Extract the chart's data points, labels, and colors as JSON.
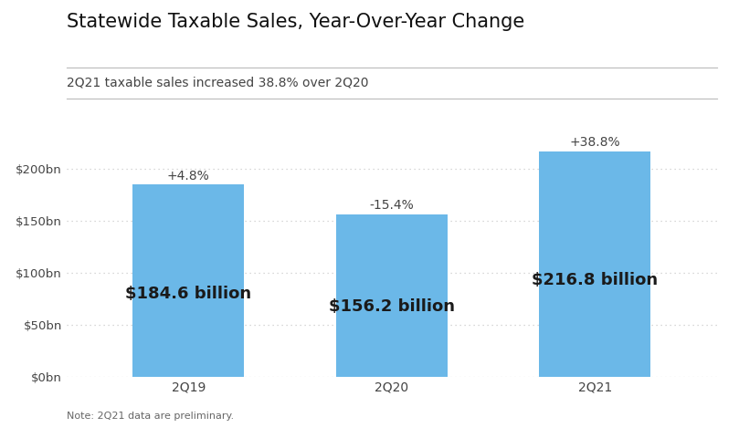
{
  "title": "Statewide Taxable Sales, Year-Over-Year Change",
  "subtitle": "2Q21 taxable sales increased 38.8% over 2Q20",
  "note": "Note: 2Q21 data are preliminary.",
  "categories": [
    "2Q19",
    "2Q20",
    "2Q21"
  ],
  "values": [
    184.6,
    156.2,
    216.8
  ],
  "bar_color": "#6bb8e8",
  "pct_labels": [
    "+4.8%",
    "-15.4%",
    "+38.8%"
  ],
  "value_labels": [
    "$184.6 billion",
    "$156.2 billion",
    "$216.8 billion"
  ],
  "yticks": [
    0,
    50,
    100,
    150,
    200
  ],
  "ytick_labels": [
    "$0bn",
    "$50bn",
    "$100bn",
    "$150bn",
    "$200bn"
  ],
  "ylim": [
    0,
    240
  ],
  "background_color": "#ffffff",
  "grid_color": "#cccccc",
  "title_fontsize": 15,
  "subtitle_fontsize": 10,
  "value_label_fontsize": 13,
  "pct_label_fontsize": 10,
  "note_fontsize": 8,
  "bar_text_color": "#1a1a1a"
}
